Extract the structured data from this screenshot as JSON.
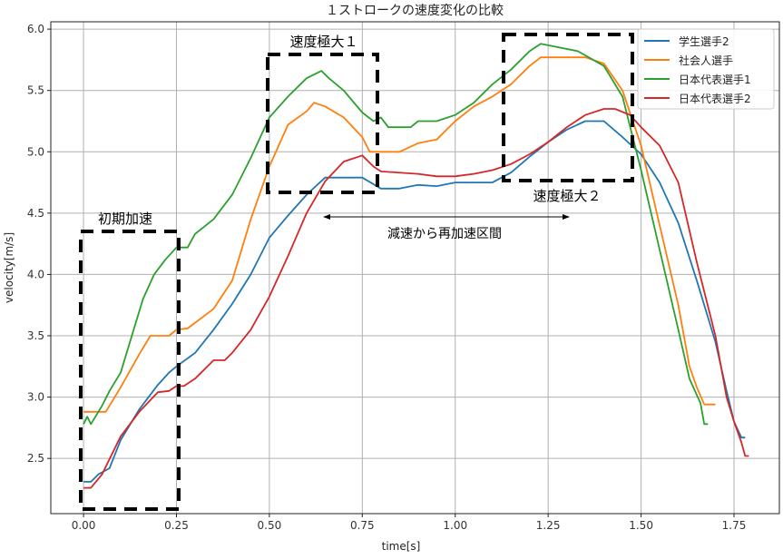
{
  "chart_data": {
    "type": "line",
    "title": "１ストロークの速度変化の比較",
    "xlabel": "time[s]",
    "ylabel": "velocity[m/s]",
    "xlim": [
      -0.088,
      1.872
    ],
    "ylim": [
      2.05,
      6.06
    ],
    "grid": true,
    "legend_position": "top-right",
    "xticks": [
      "0.00",
      "0.25",
      "0.50",
      "0.75",
      "1.00",
      "1.25",
      "1.50",
      "1.75"
    ],
    "xtick_values": [
      0,
      0.25,
      0.5,
      0.75,
      1.0,
      1.25,
      1.5,
      1.75
    ],
    "yticks": [
      "2.5",
      "3.0",
      "3.5",
      "4.0",
      "4.5",
      "5.0",
      "5.5",
      "6.0"
    ],
    "ytick_values": [
      2.5,
      3.0,
      3.5,
      4.0,
      4.5,
      5.0,
      5.5,
      6.0
    ],
    "series": [
      {
        "name": "学生選手2",
        "color": "#1f77b4",
        "x": [
          0,
          0.02,
          0.04,
          0.07,
          0.1,
          0.15,
          0.2,
          0.23,
          0.25,
          0.3,
          0.35,
          0.4,
          0.45,
          0.5,
          0.55,
          0.6,
          0.625,
          0.65,
          0.75,
          0.8,
          0.85,
          0.9,
          0.95,
          1.0,
          1.1,
          1.15,
          1.2,
          1.25,
          1.3,
          1.35,
          1.4,
          1.45,
          1.5,
          1.55,
          1.6,
          1.65,
          1.7,
          1.73,
          1.75,
          1.77,
          1.78
        ],
        "y": [
          2.31,
          2.31,
          2.37,
          2.42,
          2.65,
          2.9,
          3.1,
          3.2,
          3.25,
          3.36,
          3.55,
          3.76,
          4.0,
          4.3,
          4.48,
          4.65,
          4.72,
          4.79,
          4.79,
          4.7,
          4.7,
          4.73,
          4.72,
          4.75,
          4.75,
          4.83,
          4.96,
          5.08,
          5.18,
          5.25,
          5.25,
          5.12,
          4.98,
          4.75,
          4.42,
          3.95,
          3.45,
          3.05,
          2.8,
          2.67,
          2.67
        ]
      },
      {
        "name": "社会人選手",
        "color": "#ff7f0e",
        "x": [
          0,
          0.06,
          0.1,
          0.15,
          0.18,
          0.23,
          0.25,
          0.28,
          0.35,
          0.4,
          0.45,
          0.5,
          0.55,
          0.6,
          0.62,
          0.65,
          0.7,
          0.75,
          0.77,
          0.85,
          0.9,
          0.95,
          1.0,
          1.05,
          1.1,
          1.15,
          1.2,
          1.23,
          1.35,
          1.4,
          1.45,
          1.5,
          1.55,
          1.6,
          1.63,
          1.65,
          1.67,
          1.7
        ],
        "y": [
          2.88,
          2.88,
          3.08,
          3.35,
          3.5,
          3.5,
          3.55,
          3.56,
          3.72,
          3.95,
          4.45,
          4.88,
          5.22,
          5.33,
          5.4,
          5.37,
          5.28,
          5.12,
          5.0,
          5.0,
          5.07,
          5.1,
          5.25,
          5.37,
          5.45,
          5.55,
          5.7,
          5.77,
          5.77,
          5.72,
          5.5,
          5.05,
          4.4,
          3.75,
          3.25,
          3.08,
          2.94,
          2.94
        ]
      },
      {
        "name": "日本代表選手1",
        "color": "#2ca02c",
        "x": [
          0,
          0.01,
          0.02,
          0.05,
          0.07,
          0.1,
          0.13,
          0.16,
          0.19,
          0.22,
          0.25,
          0.28,
          0.3,
          0.35,
          0.4,
          0.45,
          0.5,
          0.55,
          0.6,
          0.64,
          0.66,
          0.7,
          0.75,
          0.78,
          0.8,
          0.82,
          0.88,
          0.9,
          0.95,
          1.0,
          1.05,
          1.1,
          1.15,
          1.2,
          1.23,
          1.33,
          1.4,
          1.45,
          1.5,
          1.55,
          1.6,
          1.63,
          1.66,
          1.67,
          1.68
        ],
        "y": [
          2.78,
          2.84,
          2.78,
          2.93,
          3.05,
          3.2,
          3.5,
          3.8,
          4.0,
          4.12,
          4.22,
          4.22,
          4.33,
          4.45,
          4.65,
          4.95,
          5.28,
          5.45,
          5.6,
          5.66,
          5.6,
          5.5,
          5.32,
          5.25,
          5.28,
          5.2,
          5.2,
          5.25,
          5.25,
          5.3,
          5.4,
          5.55,
          5.67,
          5.82,
          5.88,
          5.82,
          5.7,
          5.45,
          4.85,
          4.2,
          3.55,
          3.15,
          2.95,
          2.78,
          2.78
        ]
      },
      {
        "name": "日本代表選手2",
        "color": "#d62728",
        "x": [
          0,
          0.02,
          0.05,
          0.1,
          0.15,
          0.2,
          0.23,
          0.25,
          0.27,
          0.3,
          0.35,
          0.38,
          0.4,
          0.45,
          0.5,
          0.55,
          0.6,
          0.65,
          0.7,
          0.75,
          0.78,
          0.8,
          0.9,
          0.95,
          1.0,
          1.05,
          1.1,
          1.15,
          1.2,
          1.25,
          1.3,
          1.35,
          1.4,
          1.43,
          1.47,
          1.5,
          1.55,
          1.6,
          1.65,
          1.7,
          1.73,
          1.75,
          1.77,
          1.78,
          1.79
        ],
        "y": [
          2.26,
          2.26,
          2.37,
          2.68,
          2.88,
          3.04,
          3.05,
          3.09,
          3.09,
          3.15,
          3.3,
          3.3,
          3.36,
          3.55,
          3.82,
          4.15,
          4.5,
          4.76,
          4.92,
          4.97,
          4.88,
          4.84,
          4.82,
          4.8,
          4.8,
          4.82,
          4.85,
          4.9,
          4.98,
          5.08,
          5.2,
          5.3,
          5.35,
          5.35,
          5.3,
          5.2,
          5.05,
          4.75,
          4.1,
          3.5,
          3.0,
          2.8,
          2.63,
          2.52,
          2.52
        ]
      }
    ],
    "annotations": {
      "box_initial": "初期加速",
      "box_peak1": "速度極大１",
      "box_peak2": "速度極大２",
      "arrow_label": "減速から再加速区間"
    }
  }
}
